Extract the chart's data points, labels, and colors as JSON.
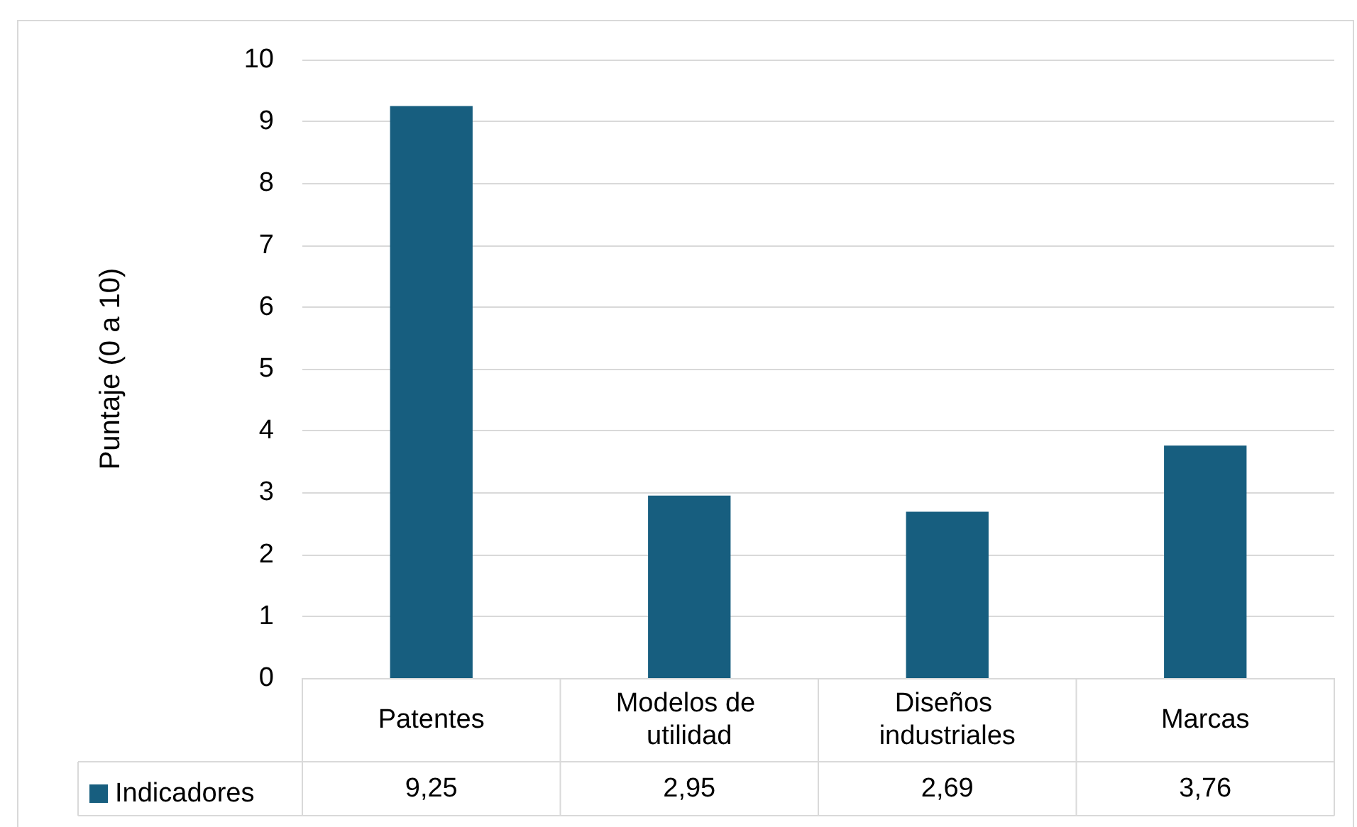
{
  "chart_data": {
    "type": "bar",
    "ylabel": "Puntaje (0 a 10)",
    "categories": [
      "Patentes",
      "Modelos de utilidad",
      "Diseños industriales",
      "Marcas"
    ],
    "series": [
      {
        "name": "Indicadores",
        "color": "#175e7f",
        "values": [
          9.25,
          2.95,
          2.69,
          3.76
        ],
        "value_labels": [
          "9,25",
          "2,95",
          "2,69",
          "3,76"
        ]
      }
    ],
    "ylim": [
      0,
      10
    ],
    "yticks": [
      0,
      1,
      2,
      3,
      4,
      5,
      6,
      7,
      8,
      9,
      10
    ],
    "grid": "y",
    "legend": "bottom left"
  }
}
